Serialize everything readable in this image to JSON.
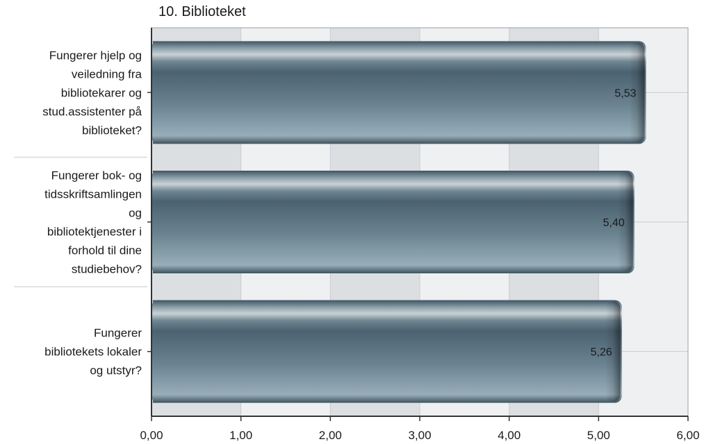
{
  "chart_data": {
    "type": "bar",
    "orientation": "horizontal",
    "title": "10. Biblioteket",
    "categories": [
      "Fungerer hjelp og veiledning fra bibliotekarer og stud.assistenter på biblioteket?",
      "Fungerer bok- og tidsskriftsamlingen og bibliotektjenester i forhold til dine studiebehov?",
      "Fungerer bibliotekets lokaler og utstyr?"
    ],
    "category_lines": [
      [
        "Fungerer hjelp og",
        "veiledning fra",
        "bibliotekarer og",
        "stud.assistenter på",
        "biblioteket?"
      ],
      [
        "Fungerer bok- og",
        "tidsskriftsamlingen",
        "og",
        "bibliotektjenester i",
        "forhold til dine",
        "studiebehov?"
      ],
      [
        "Fungerer",
        "bibliotekets lokaler",
        "og utstyr?"
      ]
    ],
    "values": [
      5.53,
      5.4,
      5.26
    ],
    "value_labels": [
      "5,53",
      "5,40",
      "5,26"
    ],
    "xlim": [
      0,
      6
    ],
    "ticks": [
      0,
      1,
      2,
      3,
      4,
      5,
      6
    ],
    "tick_labels": [
      "0,00",
      "1,00",
      "2,00",
      "3,00",
      "4,00",
      "5,00",
      "6,00"
    ],
    "xlabel": "",
    "ylabel": "",
    "grid": true,
    "colors": {
      "bar_dark": "#3f5563",
      "bar_mid": "#5e7683",
      "bar_light": "#93aab6",
      "bar_highlight": "#c9d2d6",
      "plot_bg_light": "#eef0f2",
      "plot_bg_dark": "#dcdfe2",
      "grid": "#c8ccd0",
      "axis": "#333333"
    }
  }
}
